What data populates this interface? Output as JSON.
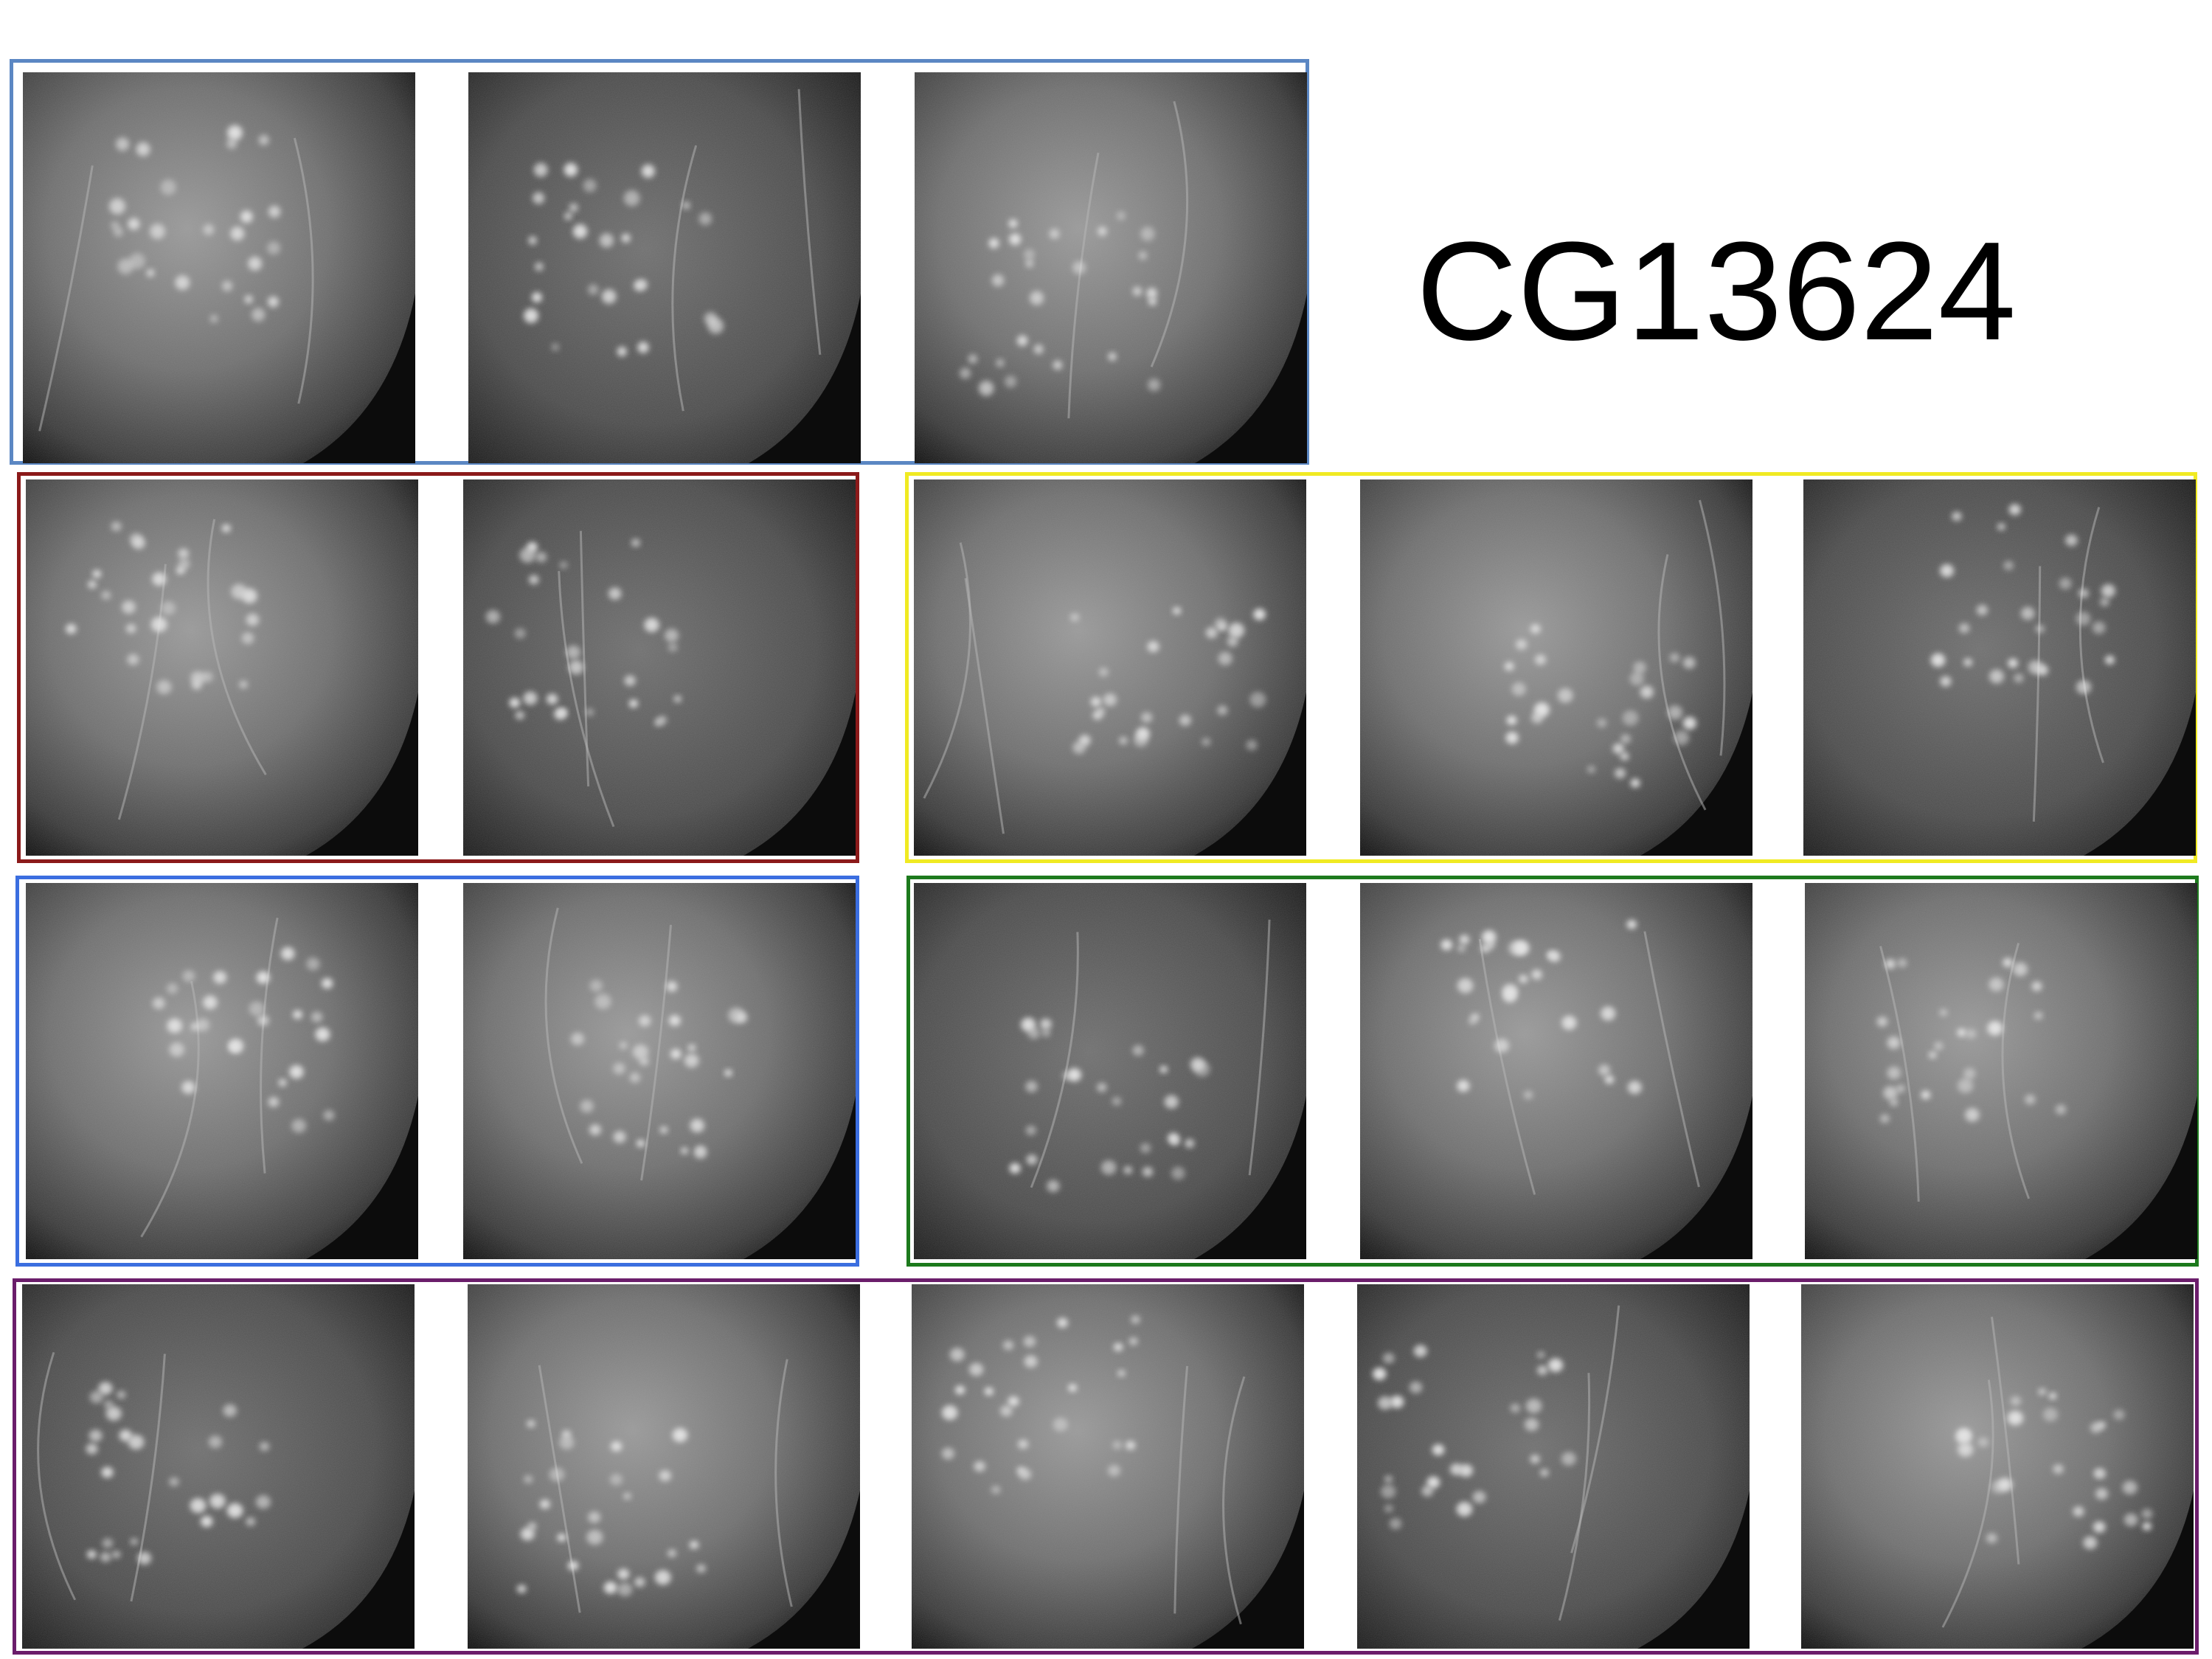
{
  "title": "CG13624",
  "colors": {
    "group_1": "#5b87c3",
    "group_2": "#8b1a1a",
    "group_3": "#f0ea22",
    "group_4": "#3b6ee0",
    "group_5": "#1d7a1d",
    "group_6": "#6b1d6b"
  },
  "groups": [
    {
      "id": "group-1",
      "color": "group_1",
      "panels": 3
    },
    {
      "id": "group-2",
      "color": "group_2",
      "panels": 2
    },
    {
      "id": "group-3",
      "color": "group_3",
      "panels": 3
    },
    {
      "id": "group-4",
      "color": "group_4",
      "panels": 2
    },
    {
      "id": "group-5",
      "color": "group_5",
      "panels": 3
    },
    {
      "id": "group-6",
      "color": "group_6",
      "panels": 5
    }
  ]
}
